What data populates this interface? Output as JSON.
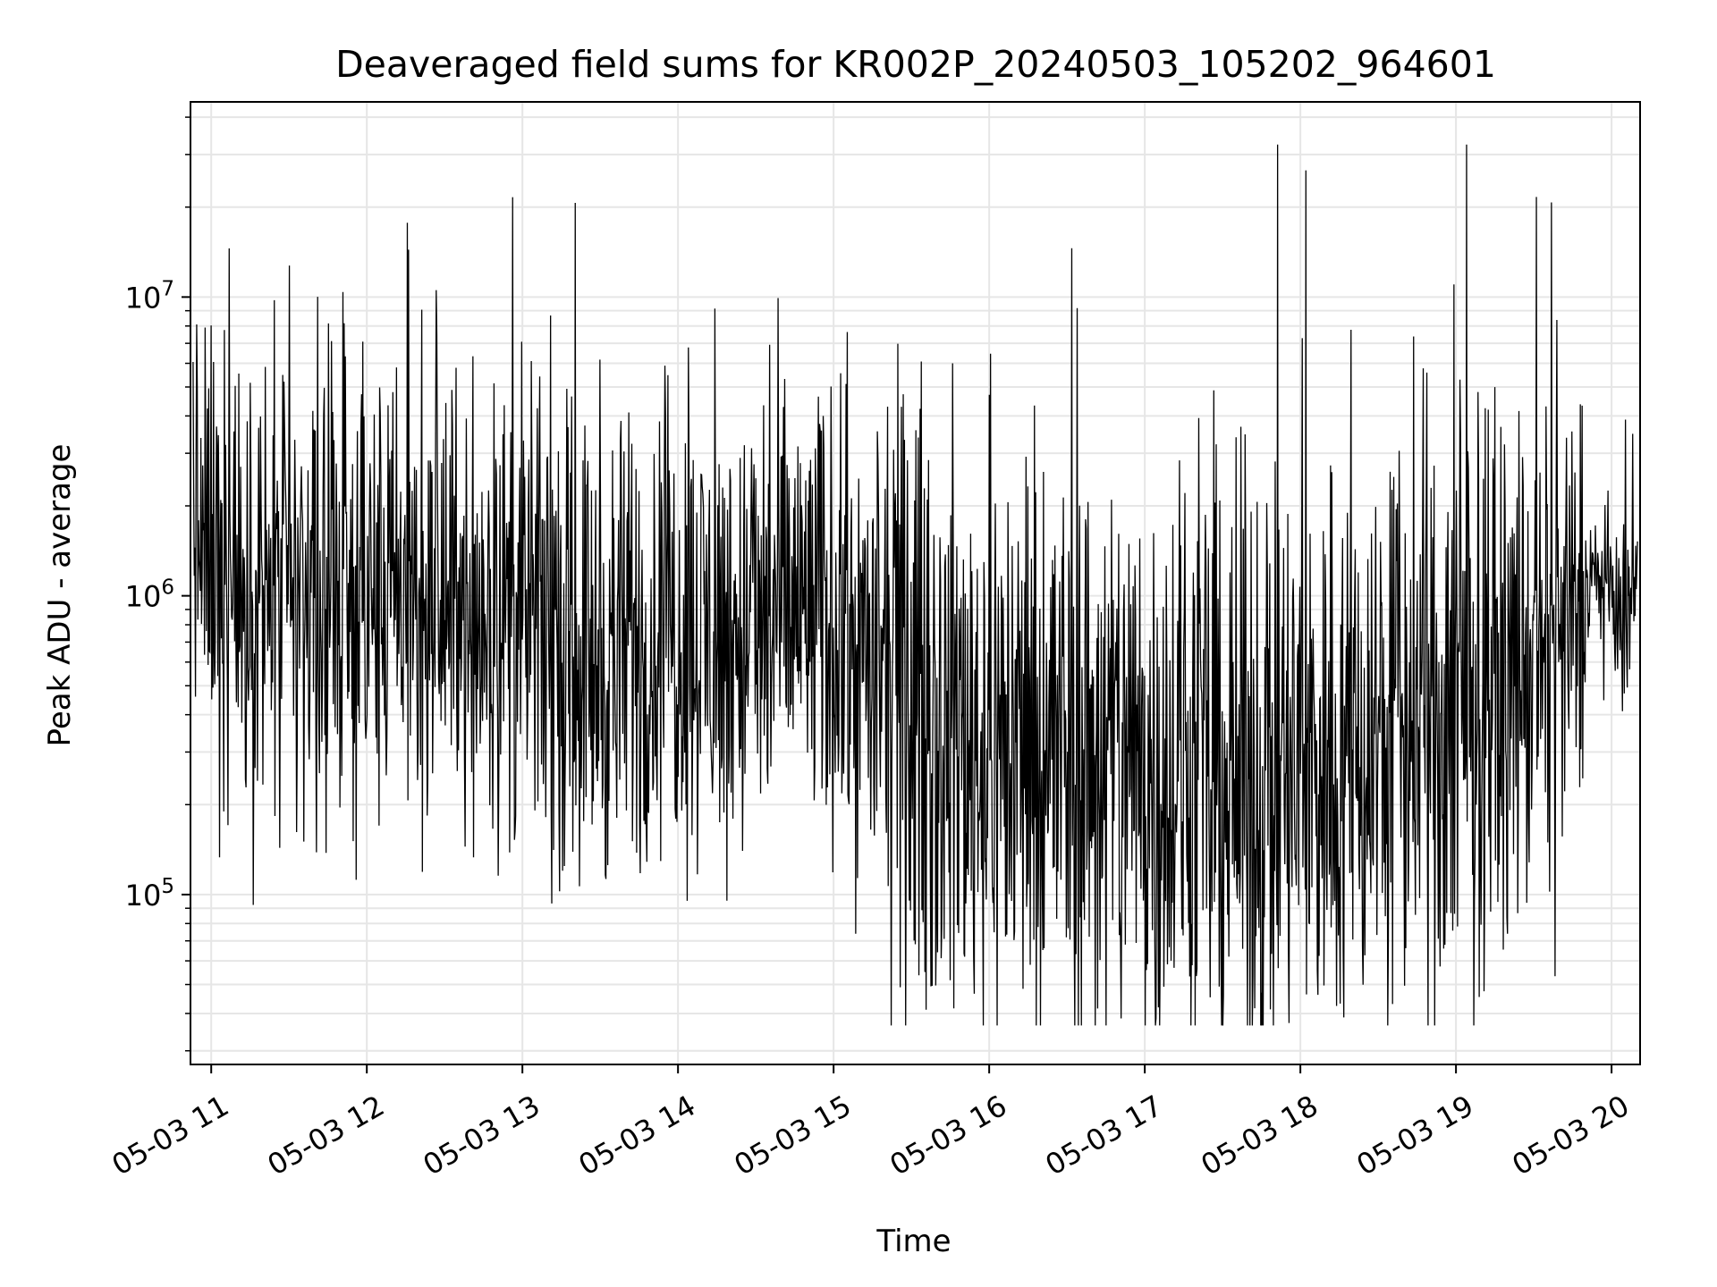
{
  "chart_data": {
    "type": "line",
    "title": "Deaveraged field sums for KR002P_20240503_105202_964601",
    "xlabel": "Time",
    "ylabel": "Peak ADU - average",
    "yscale": "log",
    "ylim": [
      27000,
      45000000
    ],
    "xlim": [
      "2024-05-03 10:52:00",
      "2024-05-03 20:11:00"
    ],
    "grid": true,
    "line_color": "#000000",
    "grid_color": "#e6e6e6",
    "x_ticks": [
      {
        "value": "2024-05-03 11:00",
        "label": "05-03 11"
      },
      {
        "value": "2024-05-03 12:00",
        "label": "05-03 12"
      },
      {
        "value": "2024-05-03 13:00",
        "label": "05-03 13"
      },
      {
        "value": "2024-05-03 14:00",
        "label": "05-03 14"
      },
      {
        "value": "2024-05-03 15:00",
        "label": "05-03 15"
      },
      {
        "value": "2024-05-03 16:00",
        "label": "05-03 16"
      },
      {
        "value": "2024-05-03 17:00",
        "label": "05-03 17"
      },
      {
        "value": "2024-05-03 18:00",
        "label": "05-03 18"
      },
      {
        "value": "2024-05-03 19:00",
        "label": "05-03 19"
      },
      {
        "value": "2024-05-03 20:00",
        "label": "05-03 20"
      }
    ],
    "y_ticks": [
      {
        "value": 100000,
        "base": "10",
        "exp": "5"
      },
      {
        "value": 1000000,
        "base": "10",
        "exp": "6"
      },
      {
        "value": 10000000,
        "base": "10",
        "exp": "7"
      }
    ],
    "series": [
      {
        "x": [
          "2024-05-03 10:53",
          "2024-05-03 10:55",
          "2024-05-03 10:58",
          "2024-05-03 11:00",
          "2024-05-03 11:05",
          "2024-05-03 11:12",
          "2024-05-03 11:20",
          "2024-05-03 11:30",
          "2024-05-03 11:40",
          "2024-05-03 11:50",
          "2024-05-03 12:00",
          "2024-05-03 12:15",
          "2024-05-03 12:30",
          "2024-05-03 12:45",
          "2024-05-03 13:00",
          "2024-05-03 13:15",
          "2024-05-03 13:30",
          "2024-05-03 13:45",
          "2024-05-03 14:00",
          "2024-05-03 14:15",
          "2024-05-03 14:30",
          "2024-05-03 14:45",
          "2024-05-03 15:00",
          "2024-05-03 15:15",
          "2024-05-03 15:30",
          "2024-05-03 15:45",
          "2024-05-03 16:00",
          "2024-05-03 16:15",
          "2024-05-03 16:30",
          "2024-05-03 16:45",
          "2024-05-03 17:00",
          "2024-05-03 17:15",
          "2024-05-03 17:30",
          "2024-05-03 17:45",
          "2024-05-03 18:00",
          "2024-05-03 18:15",
          "2024-05-03 18:30",
          "2024-05-03 18:45",
          "2024-05-03 19:00",
          "2024-05-03 19:15",
          "2024-05-03 19:30",
          "2024-05-03 19:45",
          "2024-05-03 19:52",
          "2024-05-03 20:00",
          "2024-05-03 20:05",
          "2024-05-03 20:10"
        ],
        "values": [
          2500000,
          1500000,
          1300000,
          1600000,
          1200000,
          900000,
          900000,
          850000,
          1000000,
          1000000,
          950000,
          900000,
          950000,
          900000,
          850000,
          700000,
          600000,
          650000,
          800000,
          700000,
          750000,
          900000,
          800000,
          550000,
          450000,
          350000,
          320000,
          320000,
          300000,
          280000,
          270000,
          250000,
          240000,
          230000,
          250000,
          300000,
          350000,
          380000,
          420000,
          480000,
          550000,
          700000,
          1200000,
          1000000,
          800000,
          1000000
        ]
      }
    ]
  }
}
